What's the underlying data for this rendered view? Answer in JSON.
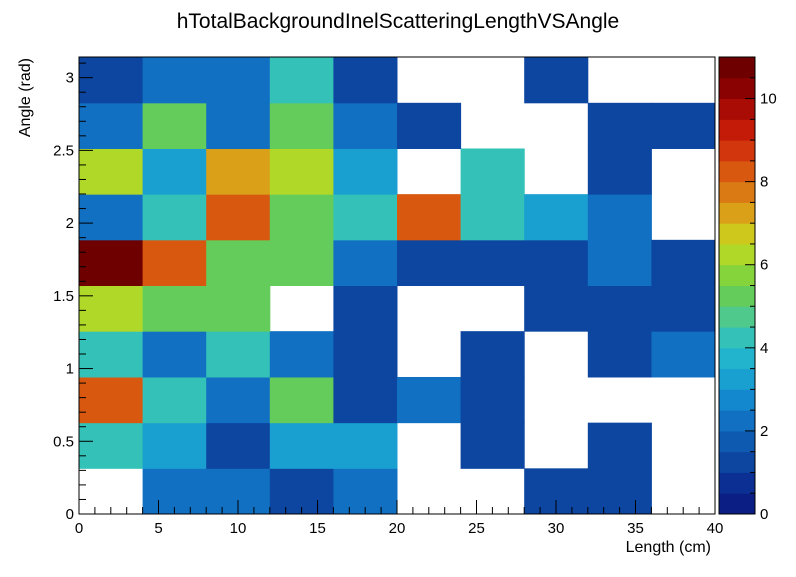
{
  "chart_data": {
    "type": "heatmap",
    "title": "hTotalBackgroundInelScatteringLengthVSAngle",
    "xlabel": "Length (cm)",
    "ylabel": "Angle (rad)",
    "x_edges": [
      0,
      4,
      8,
      12,
      16,
      20,
      24,
      28,
      32,
      36,
      40
    ],
    "y_edges": [
      0,
      0.314,
      0.628,
      0.942,
      1.257,
      1.571,
      1.885,
      2.199,
      2.513,
      2.827,
      3.142
    ],
    "xlim": [
      0,
      40
    ],
    "ylim": [
      0,
      3.142
    ],
    "zlim": [
      0,
      11
    ],
    "x_ticks": [
      "0",
      "5",
      "10",
      "15",
      "20",
      "25",
      "30",
      "35",
      "40"
    ],
    "y_ticks": [
      "0",
      "0.5",
      "1",
      "1.5",
      "2",
      "2.5",
      "3"
    ],
    "z_ticks": [
      "0",
      "2",
      "4",
      "6",
      "8",
      "10"
    ],
    "values_note_empty_bins": 0,
    "z": [
      [
        0,
        2,
        2,
        1,
        2,
        0,
        0,
        1,
        1,
        0
      ],
      [
        4,
        3,
        1,
        3,
        3,
        0,
        1,
        0,
        1,
        0
      ],
      [
        8,
        4,
        2,
        5,
        1,
        2,
        1,
        0,
        0,
        0
      ],
      [
        4,
        2,
        4,
        2,
        1,
        0,
        1,
        0,
        1,
        2
      ],
      [
        6,
        5,
        5,
        0,
        1,
        0,
        0,
        1,
        1,
        1
      ],
      [
        11,
        8,
        5,
        5,
        2,
        1,
        1,
        1,
        2,
        1
      ],
      [
        2,
        4,
        8,
        5,
        4,
        8,
        4,
        3,
        2,
        0
      ],
      [
        6,
        3,
        7,
        6,
        3,
        0,
        4,
        0,
        1,
        0
      ],
      [
        2,
        5,
        2,
        5,
        2,
        1,
        0,
        0,
        1,
        1
      ],
      [
        1,
        2,
        2,
        4,
        1,
        0,
        0,
        1,
        0,
        0
      ]
    ],
    "palette": [
      "#0a1e84",
      "#0b2f92",
      "#0c46a0",
      "#0e5ab0",
      "#1170c2",
      "#1488ce",
      "#1aa0d0",
      "#22b4cc",
      "#34c2b8",
      "#4fca8c",
      "#64cc5a",
      "#86d43c",
      "#b0d828",
      "#cfc81c",
      "#d9a018",
      "#da7a14",
      "#d85810",
      "#d2360c",
      "#c41a08",
      "#a80c04",
      "#8a0302",
      "#6e0000"
    ],
    "legend_position": "right",
    "grid": false
  }
}
